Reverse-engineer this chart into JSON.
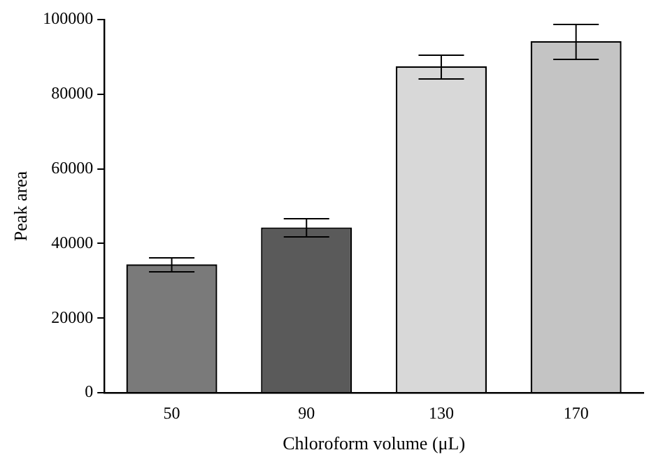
{
  "chart_data": {
    "type": "bar",
    "xlabel": "Chloroform volume (μL)",
    "ylabel": "Peak area",
    "categories": [
      "50",
      "90",
      "130",
      "170"
    ],
    "values": [
      34400,
      44300,
      87500,
      94200
    ],
    "errors": [
      1800,
      2500,
      3200,
      4700
    ],
    "colors": [
      "#7a7a7a",
      "#5a5a5a",
      "#d8d8d8",
      "#c4c4c4"
    ],
    "ylim": [
      0,
      100000
    ],
    "yticks": [
      0,
      20000,
      40000,
      60000,
      80000,
      100000
    ],
    "grid": false,
    "legend": false
  }
}
